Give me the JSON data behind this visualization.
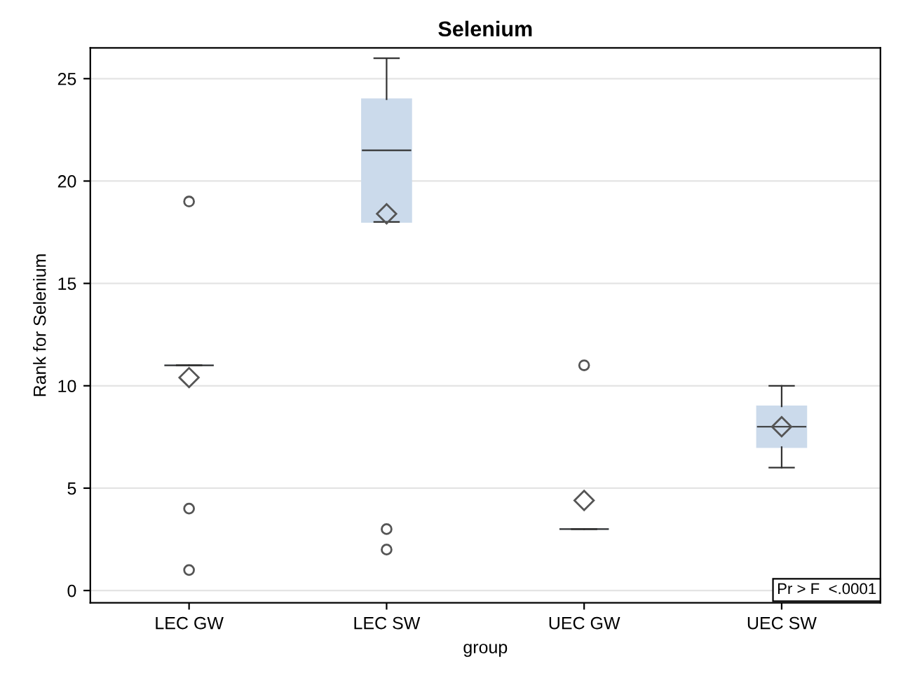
{
  "chart_data": {
    "type": "box",
    "title": "Selenium",
    "xlabel": "group",
    "ylabel": "Rank for Selenium",
    "categories": [
      "LEC GW",
      "LEC SW",
      "UEC GW",
      "UEC SW"
    ],
    "boxes": [
      {
        "low": 11,
        "q1": 11,
        "median": 11,
        "q3": 11,
        "high": 11,
        "mean": 10.4,
        "outliers": [
          19,
          4,
          1
        ]
      },
      {
        "low": 18,
        "q1": 18,
        "median": 21.5,
        "q3": 24,
        "high": 26,
        "mean": 18.4,
        "outliers": [
          3,
          2
        ]
      },
      {
        "low": 3,
        "q1": 3,
        "median": 3,
        "q3": 3,
        "high": 3,
        "mean": 4.4,
        "outliers": [
          11
        ]
      },
      {
        "low": 6,
        "q1": 7,
        "median": 8,
        "q3": 9,
        "high": 10,
        "mean": 8
      }
    ],
    "color": "#cbdaeb",
    "ylim": [
      -0.6,
      26.5
    ],
    "yticks": [
      0,
      5,
      10,
      15,
      20,
      25
    ],
    "grid": "y",
    "annotations": [
      "Pr > F  <.0001"
    ]
  }
}
